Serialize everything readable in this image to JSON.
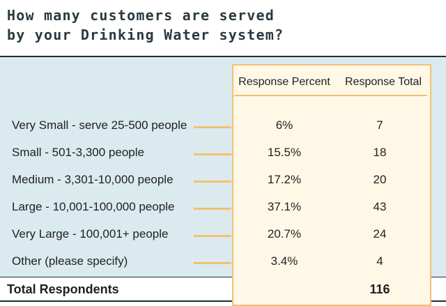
{
  "title": {
    "line1": "How many customers are served",
    "line2": "by your Drinking Water system?"
  },
  "colors": {
    "panel": "#dbeaef",
    "accent": "#f4c071",
    "box": "#fff8e7",
    "rule": "#1c2f38"
  },
  "chart_data": {
    "type": "table",
    "columns": [
      "Response Percent",
      "Response Total"
    ],
    "rows": [
      {
        "label": "Very Small - serve 25-500 people",
        "percent": "6%",
        "total": "7"
      },
      {
        "label": "Small - 501-3,300 people",
        "percent": "15.5%",
        "total": "18"
      },
      {
        "label": "Medium - 3,301-10,000 people",
        "percent": "17.2%",
        "total": "20"
      },
      {
        "label": "Large - 10,001-100,000 people",
        "percent": "37.1%",
        "total": "43"
      },
      {
        "label": "Very Large - 100,001+ people",
        "percent": "20.7%",
        "total": "24"
      },
      {
        "label": "Other (please specify)",
        "percent": "3.4%",
        "total": "4"
      }
    ],
    "total_label": "Total Respondents",
    "total_value": "116"
  }
}
